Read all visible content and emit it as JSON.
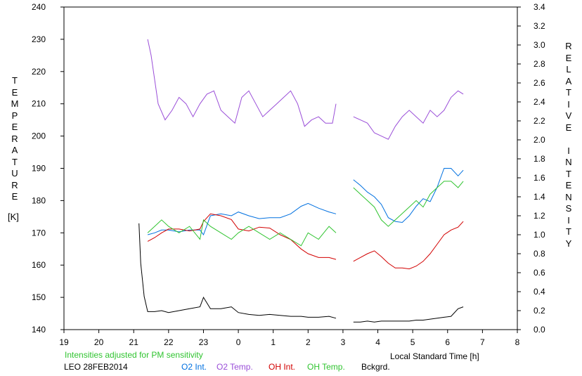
{
  "chart_data": {
    "type": "line",
    "title": "",
    "xlabel": "Local Standard Time [h]",
    "ylabel_left": "TEMPERATURE",
    "ylabel_left_unit": "[K]",
    "ylabel_right": "RELATIVE INTENSITY",
    "x_range": [
      19,
      32
    ],
    "x_tick_labels": [
      "19",
      "20",
      "21",
      "22",
      "23",
      "0",
      "1",
      "2",
      "3",
      "4",
      "5",
      "6",
      "7",
      "8"
    ],
    "y_left_range": [
      140,
      240
    ],
    "y_left_ticks": [
      140,
      150,
      160,
      170,
      180,
      190,
      200,
      210,
      220,
      230,
      240
    ],
    "y_right_range": [
      0.0,
      3.4
    ],
    "y_right_tick_labels": [
      "0.0",
      "0.2",
      "0.4",
      "0.6",
      "0.8",
      "1.0",
      "1.2",
      "1.4",
      "1.6",
      "1.8",
      "2.0",
      "2.2",
      "2.4",
      "2.6",
      "2.8",
      "3.0",
      "3.2",
      "3.4"
    ],
    "grid": false,
    "note": "Intensities adjusted for PM sensitivity",
    "station": "LEO 28FEB2014",
    "series": [
      {
        "name": "O2 Int.",
        "color": "#0070e0",
        "axis": "right",
        "x": [
          21.4,
          21.6,
          21.8,
          22.0,
          22.3,
          22.6,
          22.9,
          23.0,
          23.2,
          23.5,
          23.8,
          24.0,
          24.3,
          24.6,
          24.9,
          25.2,
          25.5,
          25.8,
          26.0,
          26.3,
          26.6,
          26.8,
          27.3,
          27.5,
          27.7,
          27.9,
          28.1,
          28.3,
          28.5,
          28.7,
          28.9,
          29.1,
          29.3,
          29.5,
          29.7,
          29.9,
          30.1,
          30.3,
          30.45
        ],
        "y": [
          1.0,
          1.02,
          1.05,
          1.05,
          1.03,
          1.05,
          1.05,
          1.0,
          1.2,
          1.22,
          1.2,
          1.24,
          1.2,
          1.17,
          1.18,
          1.18,
          1.22,
          1.3,
          1.33,
          1.28,
          1.24,
          1.22,
          1.58,
          1.52,
          1.45,
          1.4,
          1.32,
          1.18,
          1.14,
          1.13,
          1.2,
          1.3,
          1.38,
          1.35,
          1.5,
          1.7,
          1.7,
          1.62,
          1.68
        ]
      },
      {
        "name": "O2 Temp.",
        "color": "#9a4ed8",
        "axis": "left",
        "x": [
          21.4,
          21.5,
          21.7,
          21.9,
          22.1,
          22.3,
          22.5,
          22.7,
          22.9,
          23.1,
          23.3,
          23.5,
          23.7,
          23.9,
          24.1,
          24.3,
          24.5,
          24.7,
          24.9,
          25.1,
          25.3,
          25.5,
          25.7,
          25.9,
          26.1,
          26.3,
          26.5,
          26.7,
          26.8,
          27.3,
          27.5,
          27.7,
          27.9,
          28.1,
          28.3,
          28.5,
          28.7,
          28.9,
          29.1,
          29.3,
          29.5,
          29.7,
          29.9,
          30.1,
          30.3,
          30.45
        ],
        "y": [
          230,
          225,
          210,
          205,
          208,
          212,
          210,
          206,
          210,
          213,
          214,
          208,
          206,
          204,
          212,
          214,
          210,
          206,
          208,
          210,
          212,
          214,
          210,
          203,
          205,
          206,
          204,
          204,
          210,
          206,
          205,
          204,
          201,
          200,
          199,
          203,
          206,
          208,
          206,
          204,
          208,
          206,
          208,
          212,
          214,
          213
        ]
      },
      {
        "name": "OH Int.",
        "color": "#d20000",
        "axis": "right",
        "x": [
          21.4,
          21.6,
          21.8,
          22.0,
          22.3,
          22.6,
          22.9,
          23.0,
          23.2,
          23.5,
          23.8,
          24.0,
          24.3,
          24.6,
          24.9,
          25.2,
          25.5,
          25.8,
          26.0,
          26.3,
          26.6,
          26.8,
          27.3,
          27.5,
          27.7,
          27.9,
          28.1,
          28.3,
          28.5,
          28.7,
          28.9,
          29.1,
          29.3,
          29.5,
          29.7,
          29.9,
          30.1,
          30.3,
          30.45
        ],
        "y": [
          0.93,
          0.97,
          1.02,
          1.06,
          1.06,
          1.04,
          1.06,
          1.14,
          1.22,
          1.2,
          1.16,
          1.06,
          1.04,
          1.08,
          1.07,
          1.0,
          0.95,
          0.85,
          0.8,
          0.76,
          0.76,
          0.74,
          0.72,
          0.76,
          0.8,
          0.83,
          0.77,
          0.7,
          0.65,
          0.65,
          0.64,
          0.67,
          0.72,
          0.8,
          0.9,
          1.0,
          1.05,
          1.08,
          1.14
        ]
      },
      {
        "name": "OH Temp.",
        "color": "#30c430",
        "axis": "left",
        "x": [
          21.4,
          21.6,
          21.8,
          22.0,
          22.3,
          22.6,
          22.9,
          23.0,
          23.2,
          23.5,
          23.8,
          24.0,
          24.3,
          24.6,
          24.9,
          25.2,
          25.5,
          25.8,
          26.0,
          26.3,
          26.6,
          26.8,
          27.3,
          27.5,
          27.7,
          27.9,
          28.1,
          28.3,
          28.5,
          28.7,
          28.9,
          29.1,
          29.3,
          29.5,
          29.7,
          29.9,
          30.1,
          30.3,
          30.45
        ],
        "y": [
          170,
          172,
          174,
          172,
          170,
          172,
          168,
          174,
          172,
          170,
          168,
          170,
          172,
          170,
          168,
          170,
          168,
          166,
          170,
          168,
          172,
          170,
          184,
          182,
          180,
          178,
          174,
          172,
          174,
          176,
          178,
          180,
          178,
          182,
          184,
          186,
          186,
          184,
          186
        ]
      },
      {
        "name": "Bckgrd.",
        "color": "#000000",
        "axis": "right",
        "x": [
          21.15,
          21.2,
          21.3,
          21.4,
          21.6,
          21.8,
          22.0,
          22.3,
          22.6,
          22.9,
          23.0,
          23.2,
          23.5,
          23.8,
          24.0,
          24.3,
          24.6,
          24.9,
          25.2,
          25.5,
          25.8,
          26.0,
          26.3,
          26.6,
          26.8,
          27.3,
          27.5,
          27.7,
          27.9,
          28.1,
          28.3,
          28.5,
          28.7,
          28.9,
          29.1,
          29.3,
          29.5,
          29.7,
          29.9,
          30.1,
          30.3,
          30.45
        ],
        "y": [
          1.12,
          0.7,
          0.35,
          0.19,
          0.19,
          0.2,
          0.18,
          0.2,
          0.22,
          0.24,
          0.34,
          0.22,
          0.22,
          0.24,
          0.18,
          0.16,
          0.15,
          0.16,
          0.15,
          0.14,
          0.14,
          0.13,
          0.13,
          0.14,
          0.12,
          0.08,
          0.08,
          0.09,
          0.08,
          0.09,
          0.09,
          0.09,
          0.09,
          0.09,
          0.1,
          0.1,
          0.11,
          0.12,
          0.13,
          0.14,
          0.22,
          0.24
        ]
      }
    ]
  }
}
